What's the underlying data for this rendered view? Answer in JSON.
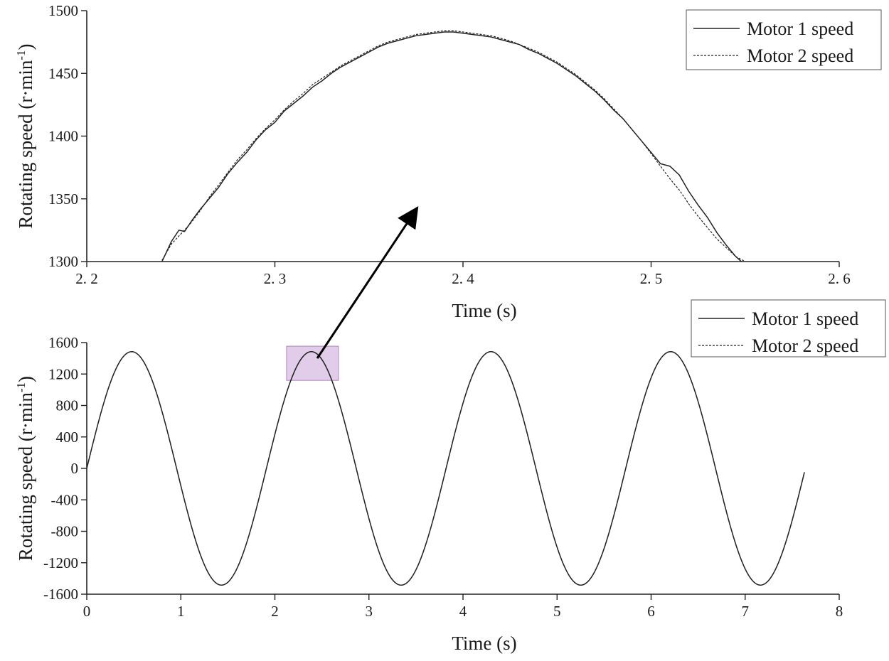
{
  "chart_data": [
    {
      "type": "line",
      "name": "zoom",
      "title": "",
      "xlabel": "Time (s)",
      "ylabel": "Rotating speed (r·min",
      "ylabel_sup": "-1",
      "ylabel_close": ")",
      "xlim": [
        2.2,
        2.6
      ],
      "ylim": [
        1300,
        1500
      ],
      "xticks": [
        2.2,
        2.3,
        2.4,
        2.5,
        2.6
      ],
      "xtick_labels": [
        "2. 2",
        "2. 3",
        "2. 4",
        "2. 5",
        "2. 6"
      ],
      "yticks": [
        1300,
        1350,
        1400,
        1450,
        1500
      ],
      "ytick_labels": [
        "1300",
        "1350",
        "1400",
        "1450",
        "1500"
      ],
      "legend_position": "top-right",
      "grid": false,
      "series": [
        {
          "name": "Motor 1 speed",
          "style": "solid",
          "color": "#222222",
          "x": [
            2.24,
            2.245,
            2.249,
            2.252,
            2.256,
            2.26,
            2.265,
            2.27,
            2.275,
            2.28,
            2.285,
            2.29,
            2.295,
            2.3,
            2.305,
            2.31,
            2.315,
            2.32,
            2.325,
            2.33,
            2.335,
            2.34,
            2.345,
            2.35,
            2.355,
            2.36,
            2.365,
            2.37,
            2.375,
            2.38,
            2.385,
            2.39,
            2.395,
            2.4,
            2.405,
            2.41,
            2.415,
            2.42,
            2.425,
            2.43,
            2.435,
            2.44,
            2.445,
            2.45,
            2.455,
            2.46,
            2.465,
            2.47,
            2.475,
            2.48,
            2.485,
            2.49,
            2.495,
            2.5,
            2.505,
            2.51,
            2.515,
            2.52,
            2.525,
            2.53,
            2.535,
            2.54,
            2.545,
            2.548
          ],
          "y": [
            1300,
            1316,
            1325,
            1324,
            1333,
            1341,
            1350,
            1359,
            1370,
            1379,
            1387,
            1397,
            1405,
            1411,
            1420,
            1426,
            1432,
            1439,
            1444,
            1450,
            1455,
            1459,
            1463,
            1467,
            1471,
            1474,
            1476,
            1478,
            1480,
            1481,
            1482,
            1483,
            1483,
            1482,
            1481,
            1480,
            1479,
            1477,
            1475,
            1473,
            1469,
            1466,
            1462,
            1458,
            1453,
            1448,
            1442,
            1436,
            1429,
            1421,
            1414,
            1405,
            1396,
            1387,
            1378,
            1376,
            1369,
            1356,
            1345,
            1335,
            1323,
            1313,
            1304,
            1300
          ]
        },
        {
          "name": "Motor 2 speed",
          "style": "dotted",
          "color": "#222222",
          "x": [
            2.24,
            2.245,
            2.25,
            2.255,
            2.26,
            2.265,
            2.27,
            2.275,
            2.28,
            2.285,
            2.29,
            2.295,
            2.3,
            2.305,
            2.31,
            2.315,
            2.32,
            2.325,
            2.33,
            2.335,
            2.34,
            2.345,
            2.35,
            2.355,
            2.36,
            2.365,
            2.37,
            2.375,
            2.38,
            2.385,
            2.39,
            2.395,
            2.4,
            2.405,
            2.41,
            2.415,
            2.42,
            2.425,
            2.43,
            2.435,
            2.44,
            2.445,
            2.45,
            2.455,
            2.46,
            2.465,
            2.47,
            2.475,
            2.48,
            2.485,
            2.49,
            2.495,
            2.5,
            2.505,
            2.51,
            2.515,
            2.52,
            2.525,
            2.53,
            2.535,
            2.54,
            2.545,
            2.55
          ],
          "y": [
            1301,
            1314,
            1322,
            1330,
            1340,
            1351,
            1361,
            1371,
            1381,
            1389,
            1398,
            1406,
            1413,
            1421,
            1428,
            1434,
            1441,
            1446,
            1451,
            1456,
            1460,
            1464,
            1468,
            1472,
            1475,
            1477,
            1479,
            1481,
            1482,
            1483,
            1484,
            1484,
            1483,
            1482,
            1481,
            1480,
            1478,
            1476,
            1473,
            1470,
            1467,
            1463,
            1459,
            1454,
            1449,
            1443,
            1437,
            1430,
            1422,
            1414,
            1405,
            1396,
            1386,
            1376,
            1366,
            1357,
            1346,
            1336,
            1327,
            1318,
            1311,
            1304,
            1300
          ]
        }
      ],
      "annotation": {
        "type": "arrow",
        "from": [
          0.5,
          1300
        ],
        "to": [
          2.37,
          1330
        ]
      }
    },
    {
      "type": "line",
      "name": "full",
      "title": "",
      "xlabel": "Time (s)",
      "ylabel": "Rotating speed (r·min",
      "ylabel_sup": "-1",
      "ylabel_close": ")",
      "xlim": [
        0,
        8
      ],
      "ylim": [
        -1600,
        1600
      ],
      "xticks": [
        0,
        1,
        2,
        3,
        4,
        5,
        6,
        7,
        8
      ],
      "xtick_labels": [
        "0",
        "1",
        "2",
        "3",
        "4",
        "5",
        "6",
        "7",
        "8"
      ],
      "yticks": [
        -1600,
        -1200,
        -800,
        -400,
        0,
        400,
        800,
        1200,
        1600
      ],
      "ytick_labels": [
        "-1600",
        "-1200",
        "-800",
        "-400",
        "0",
        "400",
        "800",
        "1200",
        "1600"
      ],
      "legend_position": "top-right",
      "grid": false,
      "series": [
        {
          "name": "Motor 1 speed",
          "style": "solid",
          "color": "#222222",
          "amplitude": 1485,
          "period_s": 1.91,
          "t_start": 0,
          "t_end": 7.63
        },
        {
          "name": "Motor 2 speed",
          "style": "dotted",
          "color": "#222222",
          "amplitude": 1485,
          "period_s": 1.91,
          "t_start": 0,
          "t_end": 7.63
        }
      ],
      "highlight": {
        "x_range": [
          2.2,
          2.6
        ],
        "y_range": [
          1300,
          1500
        ],
        "color": "#b57fc9"
      }
    }
  ]
}
